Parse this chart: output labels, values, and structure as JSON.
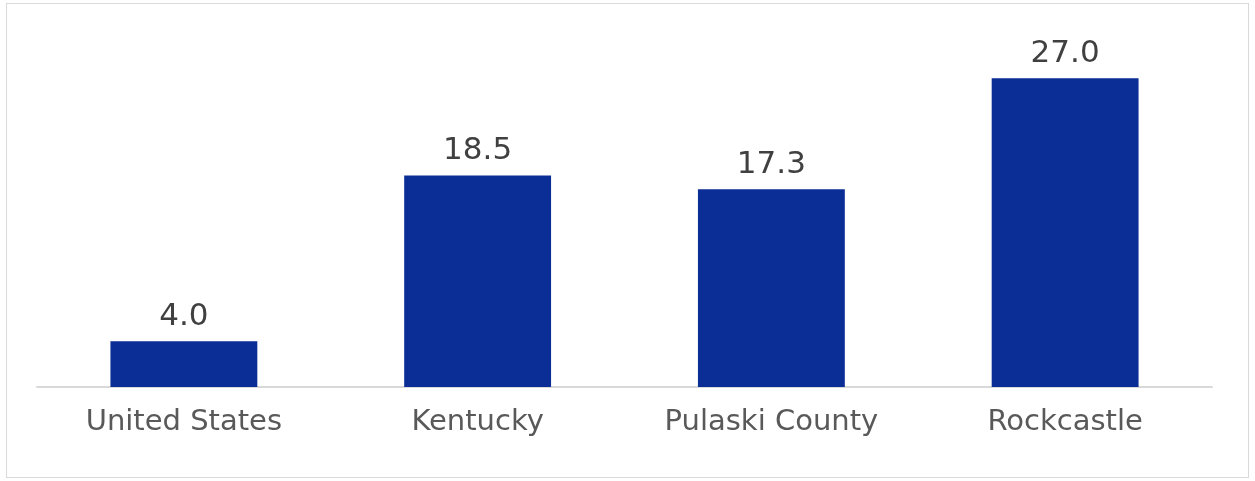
{
  "chart_data": {
    "type": "bar",
    "categories": [
      "United States",
      "Kentucky",
      "Pulaski County",
      "Rockcastle"
    ],
    "values": [
      4.0,
      18.5,
      17.3,
      27.0
    ],
    "color": "#0b2d96",
    "value_labels": [
      "4.0",
      "18.5",
      "17.3",
      "27.0"
    ]
  }
}
